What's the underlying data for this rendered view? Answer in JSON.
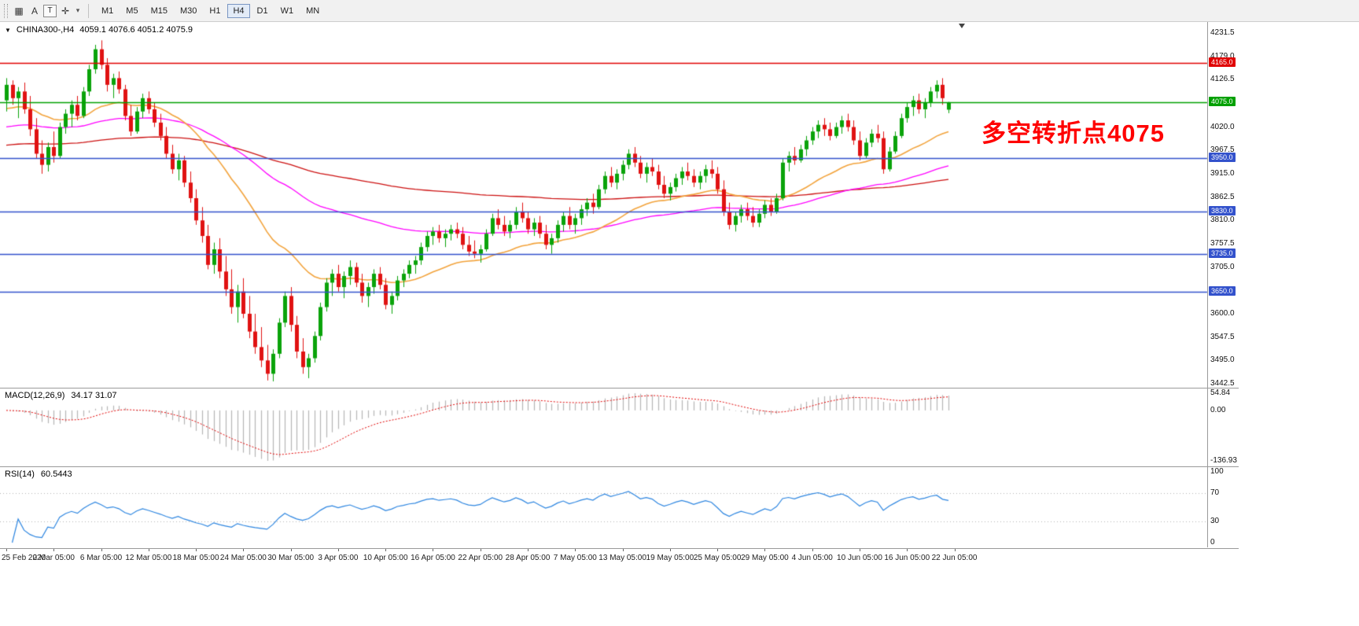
{
  "icons": {
    "caret_down": "▼",
    "chevron_down": "▾"
  },
  "toolbar": {
    "tools": [
      {
        "name": "grid",
        "glyph": "▦",
        "boxed": false
      },
      {
        "name": "cursor-a",
        "glyph": "A",
        "boxed": false
      },
      {
        "name": "text",
        "glyph": "T",
        "boxed": true
      },
      {
        "name": "crosshair",
        "glyph": "✛",
        "boxed": false
      },
      {
        "name": "dropdown",
        "glyph": "▾",
        "boxed": false
      }
    ],
    "timeframes": [
      "M1",
      "M5",
      "M15",
      "M30",
      "H1",
      "H4",
      "D1",
      "W1",
      "MN"
    ],
    "active_timeframe": "H4"
  },
  "header": {
    "symbol_tf": "CHINA300-,H4",
    "ohlc": "4059.1 4076.6 4051.2 4075.9"
  },
  "chart_data": {
    "type": "candlestick",
    "symbol": "CHINA300-",
    "timeframe": "H4",
    "last_bar": {
      "open": 4059.1,
      "high": 4076.6,
      "low": 4051.2,
      "close": 4075.9
    },
    "colors": {
      "bull": "#0aa30a",
      "bear": "#e01212",
      "hline_red": "#e00000",
      "hline_green": "#00a000",
      "hline_blue": "#3352cc",
      "macd_hist": "#b5b5b5",
      "macd_signal": "#e00000",
      "rsi_line": "#2e86e0",
      "annotation": "#ff0000"
    },
    "y_axis": {
      "max": 4231.5,
      "min": 3442.5,
      "ticks": [
        "4231.5",
        "4179.0",
        "4126.5",
        "4020.0",
        "3967.5",
        "3915.0",
        "3862.5",
        "3810.0",
        "3757.5",
        "3705.0",
        "3600.0",
        "3547.5",
        "3495.0",
        "3442.5"
      ]
    },
    "hlines": [
      {
        "price": 4165.0,
        "badge": "4165.0",
        "color": "#e00000",
        "width": 1.5
      },
      {
        "price": 4075.0,
        "badge": "4075.0",
        "color": "#00a000",
        "width": 1.5
      },
      {
        "price": 3950.0,
        "badge": "3950.0",
        "color": "#3352cc",
        "width": 1.7
      },
      {
        "price": 3830.0,
        "badge": "3830.0",
        "color": "#3352cc",
        "width": 1.7
      },
      {
        "price": 3735.0,
        "badge": "3735.0",
        "color": "#3352cc",
        "width": 1.7
      },
      {
        "price": 3650.0,
        "badge": "3650.0",
        "color": "#3352cc",
        "width": 1.7
      }
    ],
    "moving_averages": [
      {
        "name": "ma-slow-red",
        "period": 200,
        "seed": 3978,
        "color": "#cc1111",
        "width": 1.3
      },
      {
        "name": "ma-mid-magenta",
        "period": 80,
        "seed": 4018,
        "color": "#ff00ff",
        "width": 1.3
      },
      {
        "name": "ma-fast-orange",
        "period": 30,
        "seed": 4058,
        "color": "#f2a33c",
        "width": 1.6
      }
    ],
    "annotation": {
      "text": "多空转折点4075",
      "color": "#ff0000"
    },
    "x_labels": [
      "25 Feb 2020",
      "2 Mar 05:00",
      "6 Mar 05:00",
      "12 Mar 05:00",
      "18 Mar 05:00",
      "24 Mar 05:00",
      "30 Mar 05:00",
      "3 Apr 05:00",
      "10 Apr 05:00",
      "16 Apr 05:00",
      "22 Apr 05:00",
      "28 Apr 05:00",
      "7 May 05:00",
      "13 May 05:00",
      "19 May 05:00",
      "25 May 05:00",
      "29 May 05:00",
      "4 Jun 05:00",
      "10 Jun 05:00",
      "16 Jun 05:00",
      "22 Jun 05:00"
    ],
    "macd": {
      "label": "MACD(12,26,9)",
      "values": "34.17 31.07",
      "fast": 12,
      "slow": 26,
      "signal_period": 9,
      "axis": {
        "max_label": "54.84",
        "zero_label": "0.00",
        "min_label": "-136.93"
      }
    },
    "rsi": {
      "label": "RSI(14)",
      "value_text": "60.5443",
      "period": 14,
      "levels": [
        70,
        30
      ],
      "axis": [
        {
          "label": "100",
          "value": 100
        },
        {
          "label": "70",
          "value": 70
        },
        {
          "label": "30",
          "value": 30
        },
        {
          "label": "0",
          "value": 0
        }
      ]
    },
    "candles": [
      [
        4080,
        4130,
        4055,
        4115
      ],
      [
        4115,
        4125,
        4070,
        4085
      ],
      [
        4085,
        4110,
        4040,
        4100
      ],
      [
        4100,
        4120,
        4050,
        4060
      ],
      [
        4060,
        4090,
        4000,
        4015
      ],
      [
        4015,
        4040,
        3950,
        3960
      ],
      [
        3960,
        3990,
        3915,
        3935
      ],
      [
        3935,
        3985,
        3920,
        3975
      ],
      [
        3975,
        4010,
        3940,
        3955
      ],
      [
        3955,
        4030,
        3950,
        4020
      ],
      [
        4020,
        4060,
        4005,
        4050
      ],
      [
        4050,
        4080,
        4020,
        4070
      ],
      [
        4070,
        4090,
        4035,
        4045
      ],
      [
        4045,
        4110,
        4040,
        4100
      ],
      [
        4100,
        4160,
        4090,
        4150
      ],
      [
        4150,
        4205,
        4140,
        4195
      ],
      [
        4195,
        4215,
        4150,
        4160
      ],
      [
        4160,
        4175,
        4100,
        4115
      ],
      [
        4115,
        4140,
        4085,
        4130
      ],
      [
        4130,
        4145,
        4095,
        4105
      ],
      [
        4105,
        4115,
        4035,
        4045
      ],
      [
        4045,
        4070,
        4000,
        4010
      ],
      [
        4010,
        4065,
        4005,
        4055
      ],
      [
        4055,
        4095,
        4040,
        4085
      ],
      [
        4085,
        4100,
        4050,
        4060
      ],
      [
        4060,
        4075,
        4020,
        4030
      ],
      [
        4030,
        4050,
        3990,
        4000
      ],
      [
        4000,
        4020,
        3950,
        3960
      ],
      [
        3960,
        3980,
        3915,
        3925
      ],
      [
        3925,
        3960,
        3900,
        3945
      ],
      [
        3945,
        3955,
        3885,
        3895
      ],
      [
        3895,
        3920,
        3850,
        3860
      ],
      [
        3860,
        3880,
        3800,
        3810
      ],
      [
        3810,
        3840,
        3760,
        3775
      ],
      [
        3775,
        3800,
        3700,
        3710
      ],
      [
        3710,
        3760,
        3690,
        3745
      ],
      [
        3745,
        3770,
        3680,
        3695
      ],
      [
        3695,
        3730,
        3640,
        3655
      ],
      [
        3655,
        3700,
        3600,
        3615
      ],
      [
        3615,
        3665,
        3580,
        3650
      ],
      [
        3650,
        3680,
        3590,
        3600
      ],
      [
        3600,
        3640,
        3545,
        3560
      ],
      [
        3560,
        3600,
        3510,
        3525
      ],
      [
        3525,
        3570,
        3480,
        3495
      ],
      [
        3495,
        3530,
        3450,
        3465
      ],
      [
        3465,
        3520,
        3448,
        3510
      ],
      [
        3510,
        3590,
        3500,
        3580
      ],
      [
        3580,
        3650,
        3570,
        3640
      ],
      [
        3640,
        3660,
        3560,
        3575
      ],
      [
        3575,
        3595,
        3500,
        3515
      ],
      [
        3515,
        3545,
        3465,
        3480
      ],
      [
        3480,
        3510,
        3455,
        3500
      ],
      [
        3500,
        3560,
        3490,
        3550
      ],
      [
        3550,
        3625,
        3540,
        3615
      ],
      [
        3615,
        3680,
        3605,
        3670
      ],
      [
        3670,
        3700,
        3640,
        3690
      ],
      [
        3690,
        3710,
        3650,
        3660
      ],
      [
        3660,
        3695,
        3635,
        3685
      ],
      [
        3685,
        3720,
        3665,
        3705
      ],
      [
        3705,
        3715,
        3660,
        3670
      ],
      [
        3670,
        3690,
        3625,
        3640
      ],
      [
        3640,
        3670,
        3615,
        3660
      ],
      [
        3660,
        3700,
        3645,
        3690
      ],
      [
        3690,
        3705,
        3655,
        3665
      ],
      [
        3665,
        3680,
        3610,
        3620
      ],
      [
        3620,
        3650,
        3600,
        3640
      ],
      [
        3640,
        3685,
        3630,
        3675
      ],
      [
        3675,
        3700,
        3660,
        3690
      ],
      [
        3690,
        3720,
        3680,
        3710
      ],
      [
        3710,
        3730,
        3690,
        3720
      ],
      [
        3720,
        3760,
        3710,
        3750
      ],
      [
        3750,
        3785,
        3740,
        3775
      ],
      [
        3775,
        3795,
        3755,
        3785
      ],
      [
        3785,
        3800,
        3760,
        3770
      ],
      [
        3770,
        3790,
        3750,
        3780
      ],
      [
        3780,
        3800,
        3765,
        3790
      ],
      [
        3790,
        3805,
        3770,
        3780
      ],
      [
        3780,
        3795,
        3745,
        3755
      ],
      [
        3755,
        3775,
        3730,
        3740
      ],
      [
        3740,
        3765,
        3725,
        3735
      ],
      [
        3735,
        3755,
        3715,
        3745
      ],
      [
        3745,
        3790,
        3740,
        3780
      ],
      [
        3780,
        3825,
        3775,
        3815
      ],
      [
        3815,
        3835,
        3790,
        3800
      ],
      [
        3800,
        3820,
        3775,
        3785
      ],
      [
        3785,
        3810,
        3770,
        3800
      ],
      [
        3800,
        3840,
        3790,
        3830
      ],
      [
        3830,
        3850,
        3805,
        3815
      ],
      [
        3815,
        3830,
        3780,
        3790
      ],
      [
        3790,
        3815,
        3775,
        3805
      ],
      [
        3805,
        3820,
        3770,
        3780
      ],
      [
        3780,
        3800,
        3745,
        3755
      ],
      [
        3755,
        3780,
        3735,
        3770
      ],
      [
        3770,
        3810,
        3760,
        3800
      ],
      [
        3800,
        3830,
        3785,
        3820
      ],
      [
        3820,
        3840,
        3790,
        3800
      ],
      [
        3800,
        3825,
        3780,
        3815
      ],
      [
        3815,
        3845,
        3800,
        3835
      ],
      [
        3835,
        3860,
        3820,
        3850
      ],
      [
        3850,
        3870,
        3825,
        3840
      ],
      [
        3840,
        3890,
        3835,
        3880
      ],
      [
        3880,
        3920,
        3870,
        3910
      ],
      [
        3910,
        3930,
        3885,
        3895
      ],
      [
        3895,
        3925,
        3880,
        3915
      ],
      [
        3915,
        3945,
        3900,
        3935
      ],
      [
        3935,
        3970,
        3925,
        3960
      ],
      [
        3960,
        3975,
        3930,
        3940
      ],
      [
        3940,
        3955,
        3905,
        3915
      ],
      [
        3915,
        3940,
        3895,
        3930
      ],
      [
        3930,
        3950,
        3910,
        3920
      ],
      [
        3920,
        3935,
        3880,
        3890
      ],
      [
        3890,
        3910,
        3860,
        3870
      ],
      [
        3870,
        3895,
        3855,
        3885
      ],
      [
        3885,
        3915,
        3875,
        3905
      ],
      [
        3905,
        3930,
        3890,
        3920
      ],
      [
        3920,
        3940,
        3900,
        3910
      ],
      [
        3910,
        3925,
        3885,
        3895
      ],
      [
        3895,
        3920,
        3880,
        3910
      ],
      [
        3910,
        3935,
        3895,
        3925
      ],
      [
        3925,
        3945,
        3905,
        3915
      ],
      [
        3915,
        3930,
        3870,
        3880
      ],
      [
        3880,
        3900,
        3820,
        3830
      ],
      [
        3830,
        3850,
        3790,
        3800
      ],
      [
        3800,
        3830,
        3785,
        3820
      ],
      [
        3820,
        3845,
        3805,
        3835
      ],
      [
        3835,
        3850,
        3810,
        3820
      ],
      [
        3820,
        3840,
        3795,
        3805
      ],
      [
        3805,
        3835,
        3795,
        3825
      ],
      [
        3825,
        3855,
        3815,
        3845
      ],
      [
        3845,
        3860,
        3820,
        3830
      ],
      [
        3830,
        3870,
        3825,
        3860
      ],
      [
        3860,
        3950,
        3855,
        3940
      ],
      [
        3940,
        3965,
        3920,
        3955
      ],
      [
        3955,
        3975,
        3935,
        3945
      ],
      [
        3945,
        3980,
        3940,
        3970
      ],
      [
        3970,
        4000,
        3955,
        3990
      ],
      [
        3990,
        4020,
        3980,
        4010
      ],
      [
        4010,
        4035,
        3995,
        4025
      ],
      [
        4025,
        4040,
        4000,
        4015
      ],
      [
        4015,
        4030,
        3990,
        4000
      ],
      [
        4000,
        4030,
        3995,
        4020
      ],
      [
        4020,
        4045,
        4005,
        4035
      ],
      [
        4035,
        4050,
        4010,
        4020
      ],
      [
        4020,
        4035,
        3980,
        3990
      ],
      [
        3990,
        4010,
        3945,
        3955
      ],
      [
        3955,
        3995,
        3950,
        3985
      ],
      [
        3985,
        4015,
        3975,
        4005
      ],
      [
        4005,
        4025,
        3985,
        3995
      ],
      [
        3995,
        4010,
        3915,
        3925
      ],
      [
        3925,
        3975,
        3920,
        3965
      ],
      [
        3965,
        4010,
        3960,
        4000
      ],
      [
        4000,
        4050,
        3995,
        4040
      ],
      [
        4040,
        4075,
        4030,
        4065
      ],
      [
        4065,
        4090,
        4045,
        4080
      ],
      [
        4080,
        4095,
        4050,
        4060
      ],
      [
        4060,
        4085,
        4040,
        4075
      ],
      [
        4075,
        4110,
        4065,
        4100
      ],
      [
        4100,
        4125,
        4085,
        4115
      ],
      [
        4115,
        4130,
        4070,
        4085
      ],
      [
        4059.1,
        4076.6,
        4051.2,
        4075.9
      ]
    ]
  }
}
